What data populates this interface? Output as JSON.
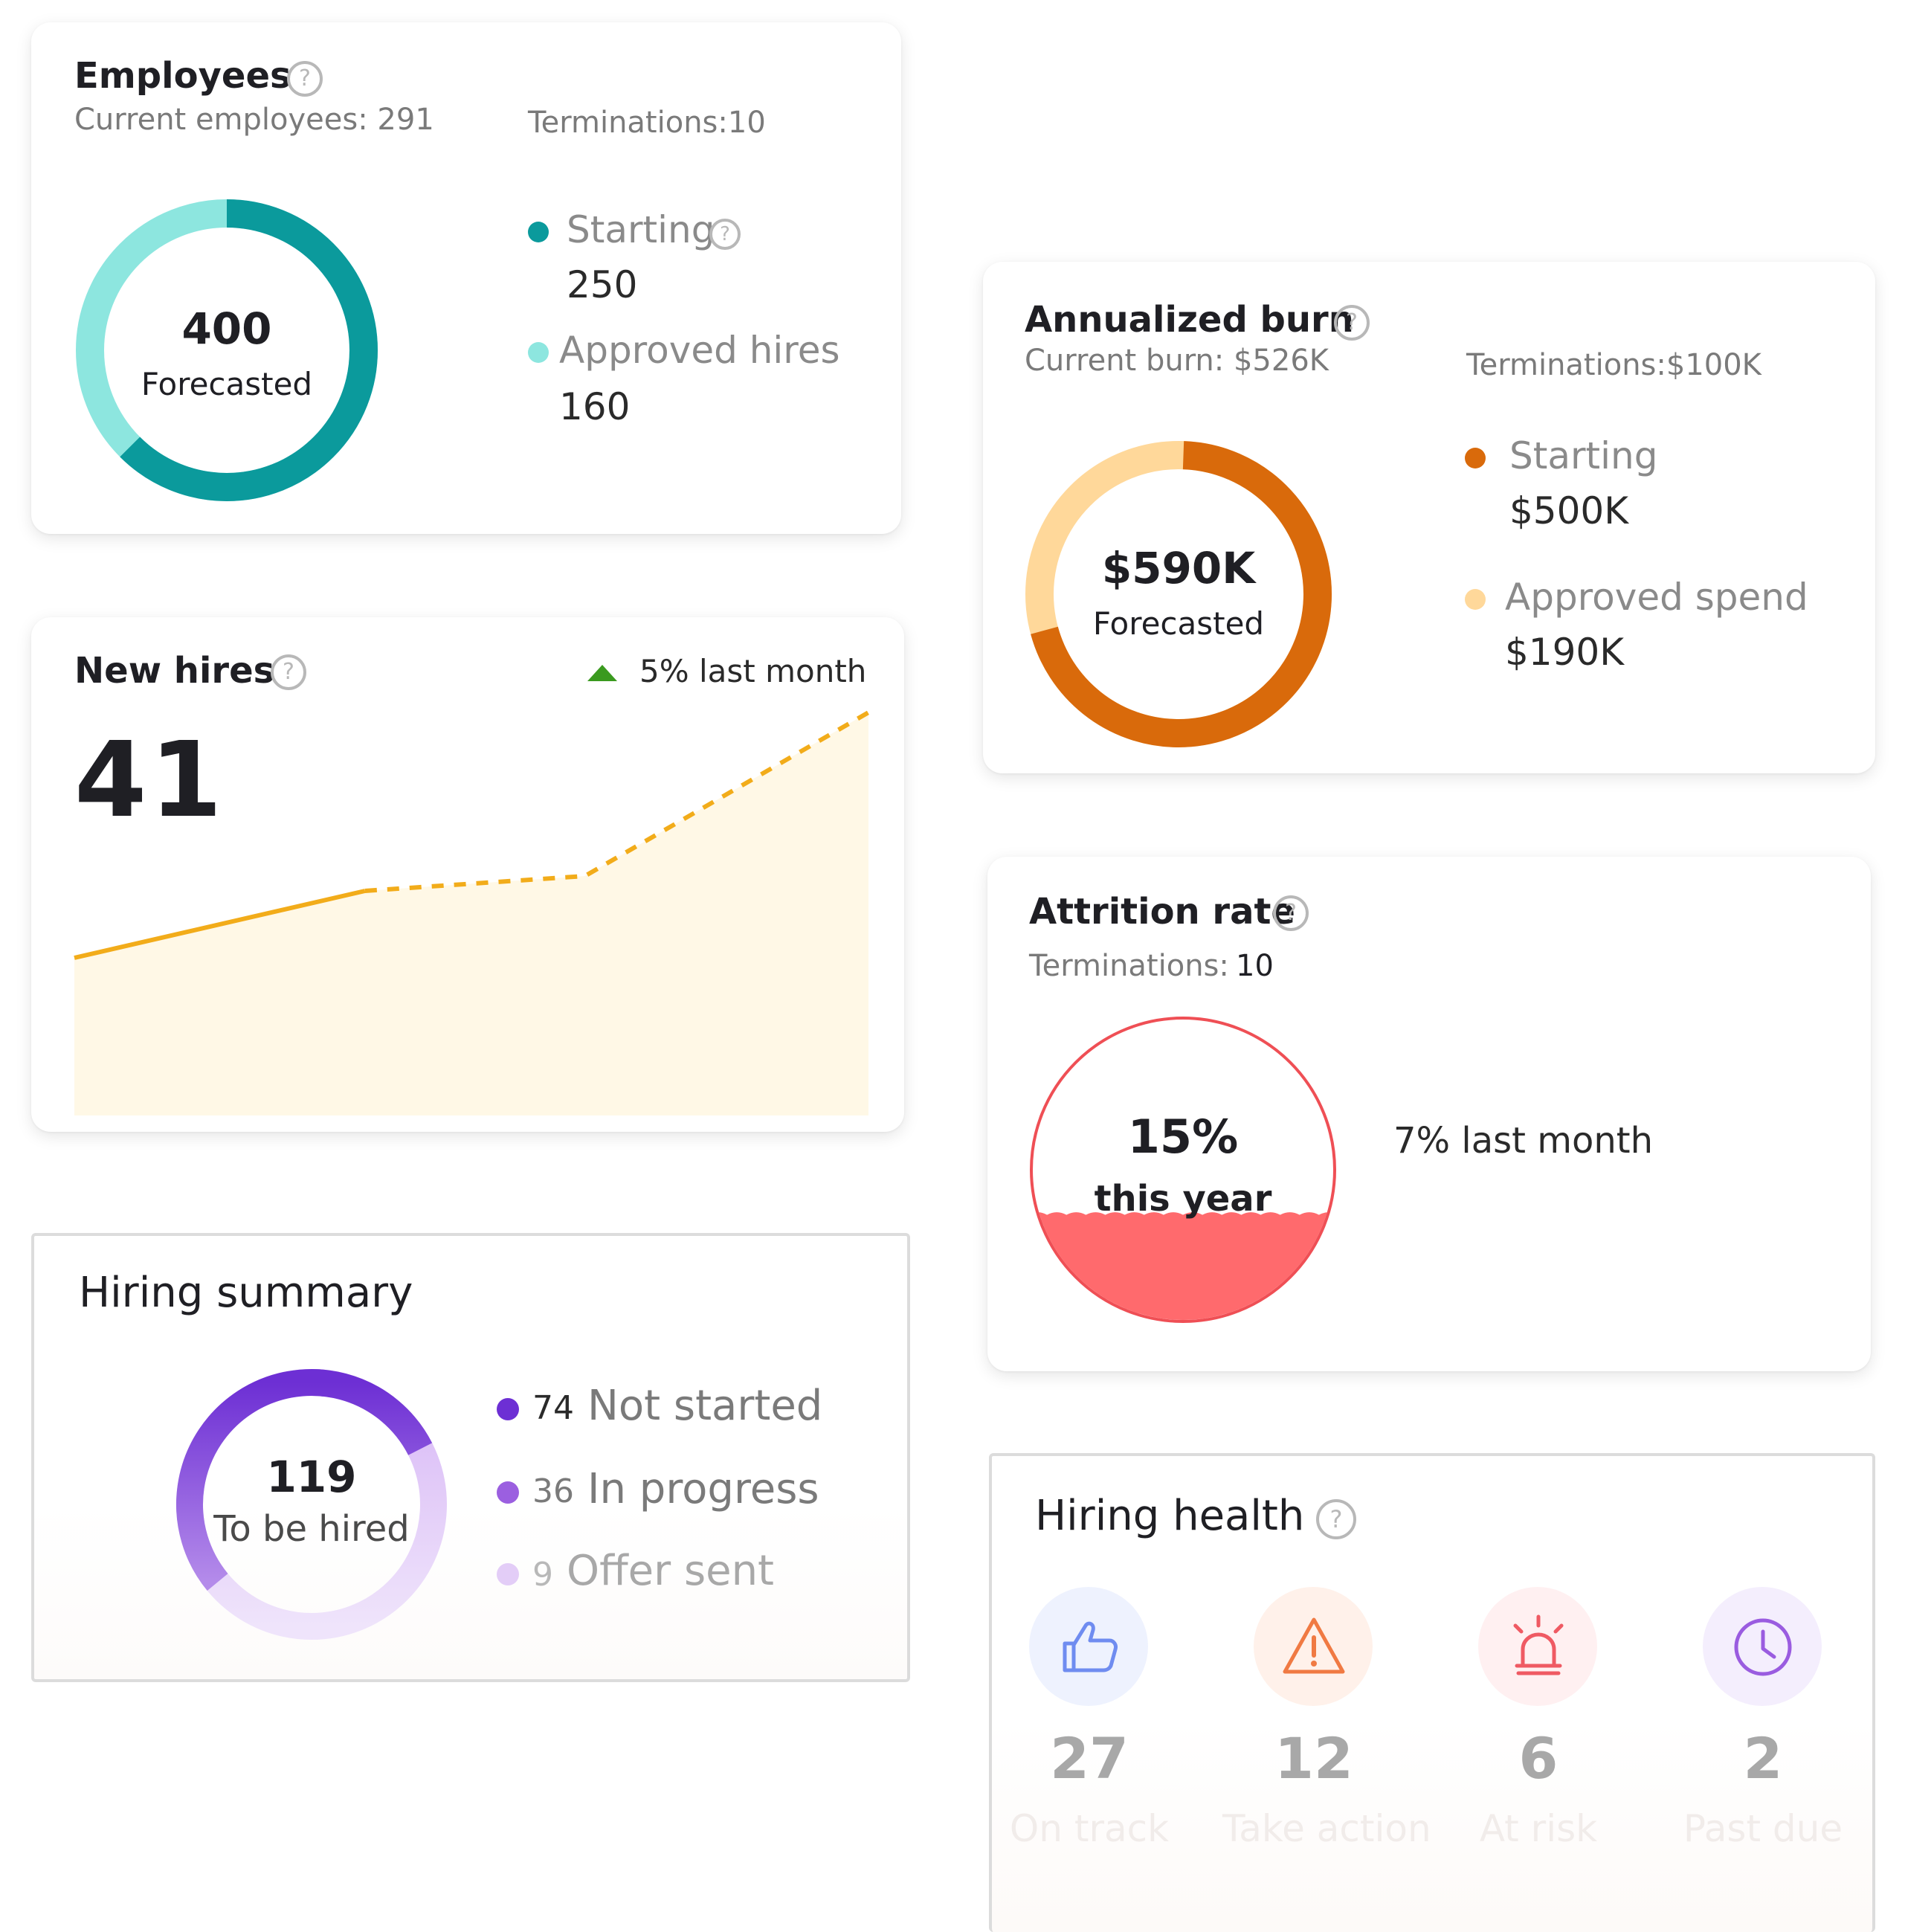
{
  "employees": {
    "title": "Employees",
    "current": "Current employees: 291",
    "terminations": "Terminations:10",
    "donut_value": "400",
    "donut_label": "Forecasted",
    "legend": [
      {
        "label": "Starting",
        "value": "250",
        "color": "#0b9a9c"
      },
      {
        "label": "Approved hires",
        "value": "160",
        "color": "#8de6df"
      }
    ]
  },
  "new_hires": {
    "title": "New hires",
    "change": "5% last month",
    "change_color": "#3a9a1f",
    "value": "41",
    "line_color": "#f2ac1a",
    "fill_color": "#fff8e6"
  },
  "hiring_summary": {
    "title": "Hiring summary",
    "donut_value": "119",
    "donut_label": "To be hired",
    "legend": [
      {
        "count": "74",
        "label": "Not started",
        "color": "#6d2fd4"
      },
      {
        "count": "36",
        "label": "In progress",
        "color": "#9b5fe0"
      },
      {
        "count": "9",
        "label": "Offer sent",
        "color": "#e3cdf7"
      }
    ]
  },
  "annualized_burn": {
    "title": "Annualized burn",
    "current": "Current burn: $526K",
    "terminations": "Terminations:$100K",
    "donut_value": "$590K",
    "donut_label": "Forecasted",
    "legend": [
      {
        "label": "Starting",
        "value": "$500K",
        "color": "#d96a0b"
      },
      {
        "label": "Approved spend",
        "value": "$190K",
        "color": "#ffd89a"
      }
    ]
  },
  "attrition": {
    "title": "Attrition rate",
    "terminations_label": "Terminations:",
    "terminations_value": "10",
    "value": "15%",
    "value_label": "this year",
    "last_month": "7% last month",
    "level": 0.35,
    "color": "#ff6a6d"
  },
  "hiring_health": {
    "title": "Hiring health",
    "items": [
      {
        "value": "27",
        "label": "On track",
        "icon": "thumbs-up-icon",
        "color": "#6f8cf0",
        "bg": "#eef2fe"
      },
      {
        "value": "12",
        "label": "Take action",
        "icon": "warning-icon",
        "color": "#f07a43",
        "bg": "#fff1ea"
      },
      {
        "value": "6",
        "label": "At risk",
        "icon": "alarm-icon",
        "color": "#ef5a63",
        "bg": "#fff0f1"
      },
      {
        "value": "2",
        "label": "Past due",
        "icon": "clock-icon",
        "color": "#9a5ce0",
        "bg": "#f4eefd"
      }
    ]
  },
  "chart_data": [
    {
      "type": "area",
      "title": "New hires",
      "x": [
        0,
        1,
        2,
        3
      ],
      "series": [
        {
          "values": [
            0.22,
            0.31,
            0.33,
            0.55
          ]
        }
      ],
      "ylim": [
        0,
        0.55
      ],
      "grid": false
    }
  ]
}
